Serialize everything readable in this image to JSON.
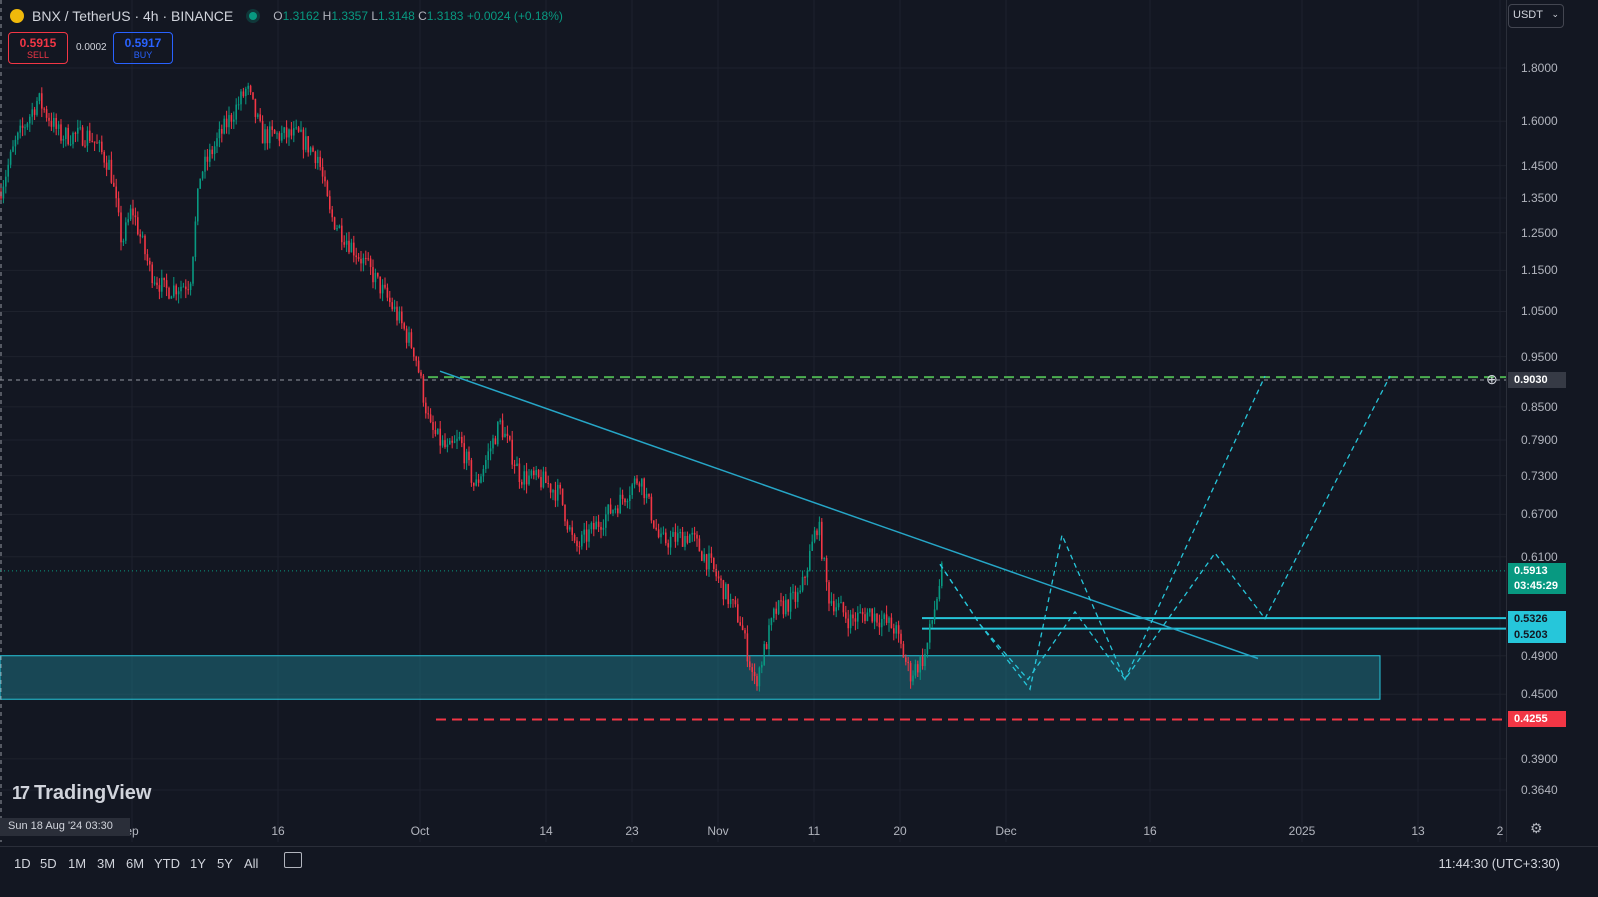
{
  "header": {
    "symbol": "BNX / TetherUS · 4h · BINANCE",
    "o_label": "O",
    "o": "1.3162",
    "h_label": "H",
    "h": "1.3357",
    "l_label": "L",
    "l": "1.3148",
    "c_label": "C",
    "c": "1.3183",
    "change": "+0.0024 (+0.18%)"
  },
  "trade": {
    "sell_price": "0.5915",
    "sell_label": "SELL",
    "spread": "0.0002",
    "buy_price": "0.5917",
    "buy_label": "BUY"
  },
  "currency": "USDT",
  "price_axis": {
    "ticks": [
      "1.8000",
      "1.6000",
      "1.4500",
      "1.3500",
      "1.2500",
      "1.1500",
      "1.0500",
      "0.9500",
      "0.8500",
      "0.7900",
      "0.7300",
      "0.6700",
      "0.6100",
      "0.4900",
      "0.4500",
      "0.3900",
      "0.3640"
    ],
    "badges": {
      "crosshair": "0.9030",
      "last_price": "0.5913",
      "countdown": "03:45:29",
      "zone_top": "0.5326",
      "zone_bottom": "0.5203",
      "stop": "0.4255"
    }
  },
  "time_axis": {
    "ticks": [
      "ep",
      "16",
      "Oct",
      "14",
      "23",
      "Nov",
      "11",
      "20",
      "Dec",
      "16",
      "2025",
      "13",
      "2"
    ],
    "cursor_date": "Sun 18 Aug '24   03:30"
  },
  "bottom": {
    "ranges": [
      "1D",
      "5D",
      "1M",
      "3M",
      "6M",
      "YTD",
      "1Y",
      "5Y",
      "All"
    ],
    "clock": "11:44:30 (UTC+3:30)"
  },
  "watermark": "TradingView",
  "colors": {
    "background": "#131722",
    "up": "#089981",
    "down": "#f23645",
    "trendline": "#26a6c7",
    "zone": "#1e6f80",
    "target_line": "#4caf50",
    "stop_line": "#f23645"
  },
  "chart_data": {
    "type": "candlestick",
    "scale": "log",
    "symbol": "BNXUSDT",
    "interval": "4h",
    "ylim": [
      0.35,
      1.95
    ],
    "path": [
      [
        0,
        1.37
      ],
      [
        15,
        1.52
      ],
      [
        38,
        1.68
      ],
      [
        60,
        1.55
      ],
      [
        90,
        1.55
      ],
      [
        110,
        1.45
      ],
      [
        122,
        1.22
      ],
      [
        132,
        1.32
      ],
      [
        150,
        1.15
      ],
      [
        165,
        1.1
      ],
      [
        190,
        1.12
      ],
      [
        200,
        1.42
      ],
      [
        220,
        1.55
      ],
      [
        247,
        1.72
      ],
      [
        262,
        1.55
      ],
      [
        298,
        1.55
      ],
      [
        318,
        1.48
      ],
      [
        330,
        1.3
      ],
      [
        350,
        1.22
      ],
      [
        370,
        1.15
      ],
      [
        395,
        1.05
      ],
      [
        415,
        0.96
      ],
      [
        430,
        0.81
      ],
      [
        448,
        0.77
      ],
      [
        460,
        0.79
      ],
      [
        475,
        0.71
      ],
      [
        500,
        0.82
      ],
      [
        520,
        0.73
      ],
      [
        545,
        0.72
      ],
      [
        560,
        0.7
      ],
      [
        575,
        0.62
      ],
      [
        600,
        0.66
      ],
      [
        620,
        0.69
      ],
      [
        640,
        0.73
      ],
      [
        660,
        0.63
      ],
      [
        690,
        0.64
      ],
      [
        710,
        0.6
      ],
      [
        740,
        0.53
      ],
      [
        755,
        0.46
      ],
      [
        775,
        0.54
      ],
      [
        800,
        0.56
      ],
      [
        818,
        0.66
      ],
      [
        828,
        0.56
      ],
      [
        850,
        0.53
      ],
      [
        870,
        0.54
      ],
      [
        895,
        0.52
      ],
      [
        910,
        0.47
      ],
      [
        925,
        0.49
      ],
      [
        942,
        0.59
      ]
    ],
    "trendline": {
      "from": [
        440,
        0.92
      ],
      "to": [
        1258,
        0.487
      ]
    },
    "target_level": 0.908,
    "stop_level": 0.4255,
    "demand_zone": {
      "top": 0.49,
      "bottom": 0.445,
      "x_start": 0,
      "x_end": 1380
    },
    "resistance_zone": {
      "top": 0.5326,
      "bottom": 0.5203,
      "x_start": 922
    },
    "projection_1": [
      [
        940,
        0.6
      ],
      [
        980,
        0.525
      ],
      [
        1030,
        0.455
      ],
      [
        1062,
        0.64
      ],
      [
        1125,
        0.465
      ],
      [
        1265,
        0.91
      ]
    ],
    "projection_2": [
      [
        940,
        0.6
      ],
      [
        980,
        0.525
      ],
      [
        1028,
        0.465
      ],
      [
        1075,
        0.54
      ],
      [
        1125,
        0.465
      ],
      [
        1215,
        0.615
      ],
      [
        1265,
        0.532
      ],
      [
        1390,
        0.91
      ]
    ]
  }
}
